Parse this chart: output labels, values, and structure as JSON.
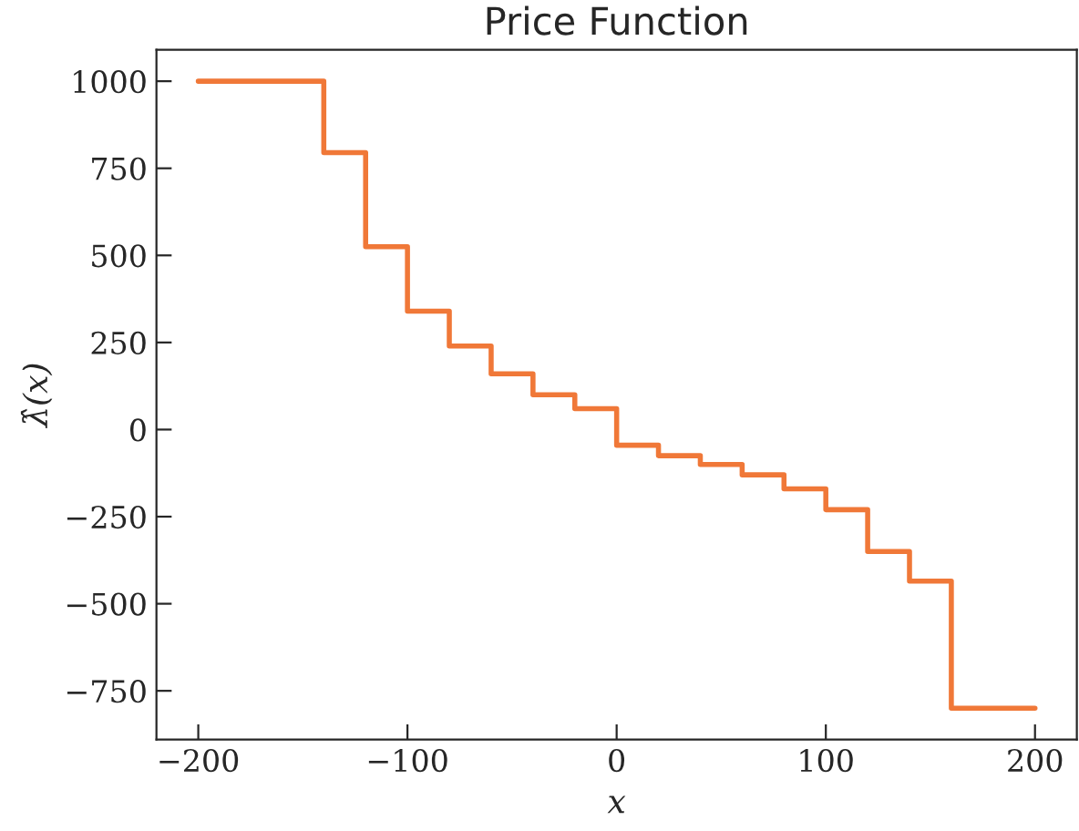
{
  "chart_data": {
    "type": "step",
    "title": "Price Function",
    "xlabel": "x",
    "ylabel": "λ̂(x)",
    "x": [
      -200,
      -140,
      -120,
      -100,
      -80,
      -60,
      -40,
      -20,
      0,
      20,
      40,
      60,
      80,
      100,
      120,
      140,
      160,
      200
    ],
    "series": [
      {
        "color": "#f07838",
        "values": [
          1000,
          795,
          525,
          340,
          240,
          160,
          100,
          60,
          -45,
          -75,
          -100,
          -130,
          -170,
          -230,
          -350,
          -435,
          -800,
          -800
        ]
      }
    ],
    "xlim": [
      -220,
      220
    ],
    "ylim": [
      -890,
      1090
    ],
    "xticks": [
      {
        "value": -200,
        "label": "−200"
      },
      {
        "value": -100,
        "label": "−100"
      },
      0,
      100,
      200
    ],
    "yticks": [
      {
        "value": -750,
        "label": "−750"
      },
      {
        "value": -500,
        "label": "−500"
      },
      {
        "value": -250,
        "label": "−250"
      },
      0,
      250,
      500,
      750,
      1000
    ],
    "grid": false,
    "legend": false
  }
}
